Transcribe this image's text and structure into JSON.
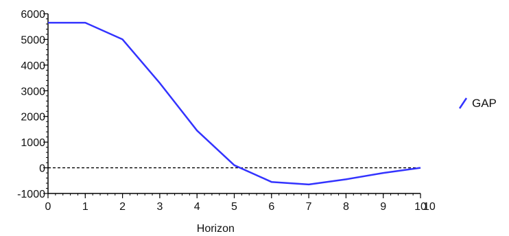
{
  "chart_data": {
    "type": "line",
    "title": "",
    "xlabel": "Horizon",
    "ylabel": "",
    "xlim": [
      0,
      10
    ],
    "ylim": [
      -1000,
      6000
    ],
    "x_ticks": [
      0,
      1,
      2,
      3,
      4,
      5,
      6,
      7,
      8,
      9,
      10
    ],
    "x_tick_labels": [
      "0",
      "1",
      "2",
      "3",
      "4",
      "5",
      "6",
      "7",
      "8",
      "9",
      "10"
    ],
    "x_extra_label": "10",
    "y_ticks": [
      -1000,
      0,
      1000,
      2000,
      3000,
      4000,
      5000,
      6000
    ],
    "y_tick_labels": [
      "-1000",
      "0",
      "1000",
      "2000",
      "3000",
      "4000",
      "5000",
      "6000"
    ],
    "reference_line": {
      "y": 0,
      "style": "dashed",
      "color": "#000000"
    },
    "grid": false,
    "legend": {
      "position": "right",
      "entries": [
        "GAP"
      ]
    },
    "series": [
      {
        "name": "GAP",
        "color": "#3333ff",
        "x": [
          0,
          1,
          2,
          3,
          4,
          5,
          6,
          7,
          8,
          9,
          10
        ],
        "y": [
          5650,
          5650,
          5000,
          3300,
          1450,
          100,
          -550,
          -650,
          -450,
          -200,
          0
        ]
      }
    ]
  }
}
